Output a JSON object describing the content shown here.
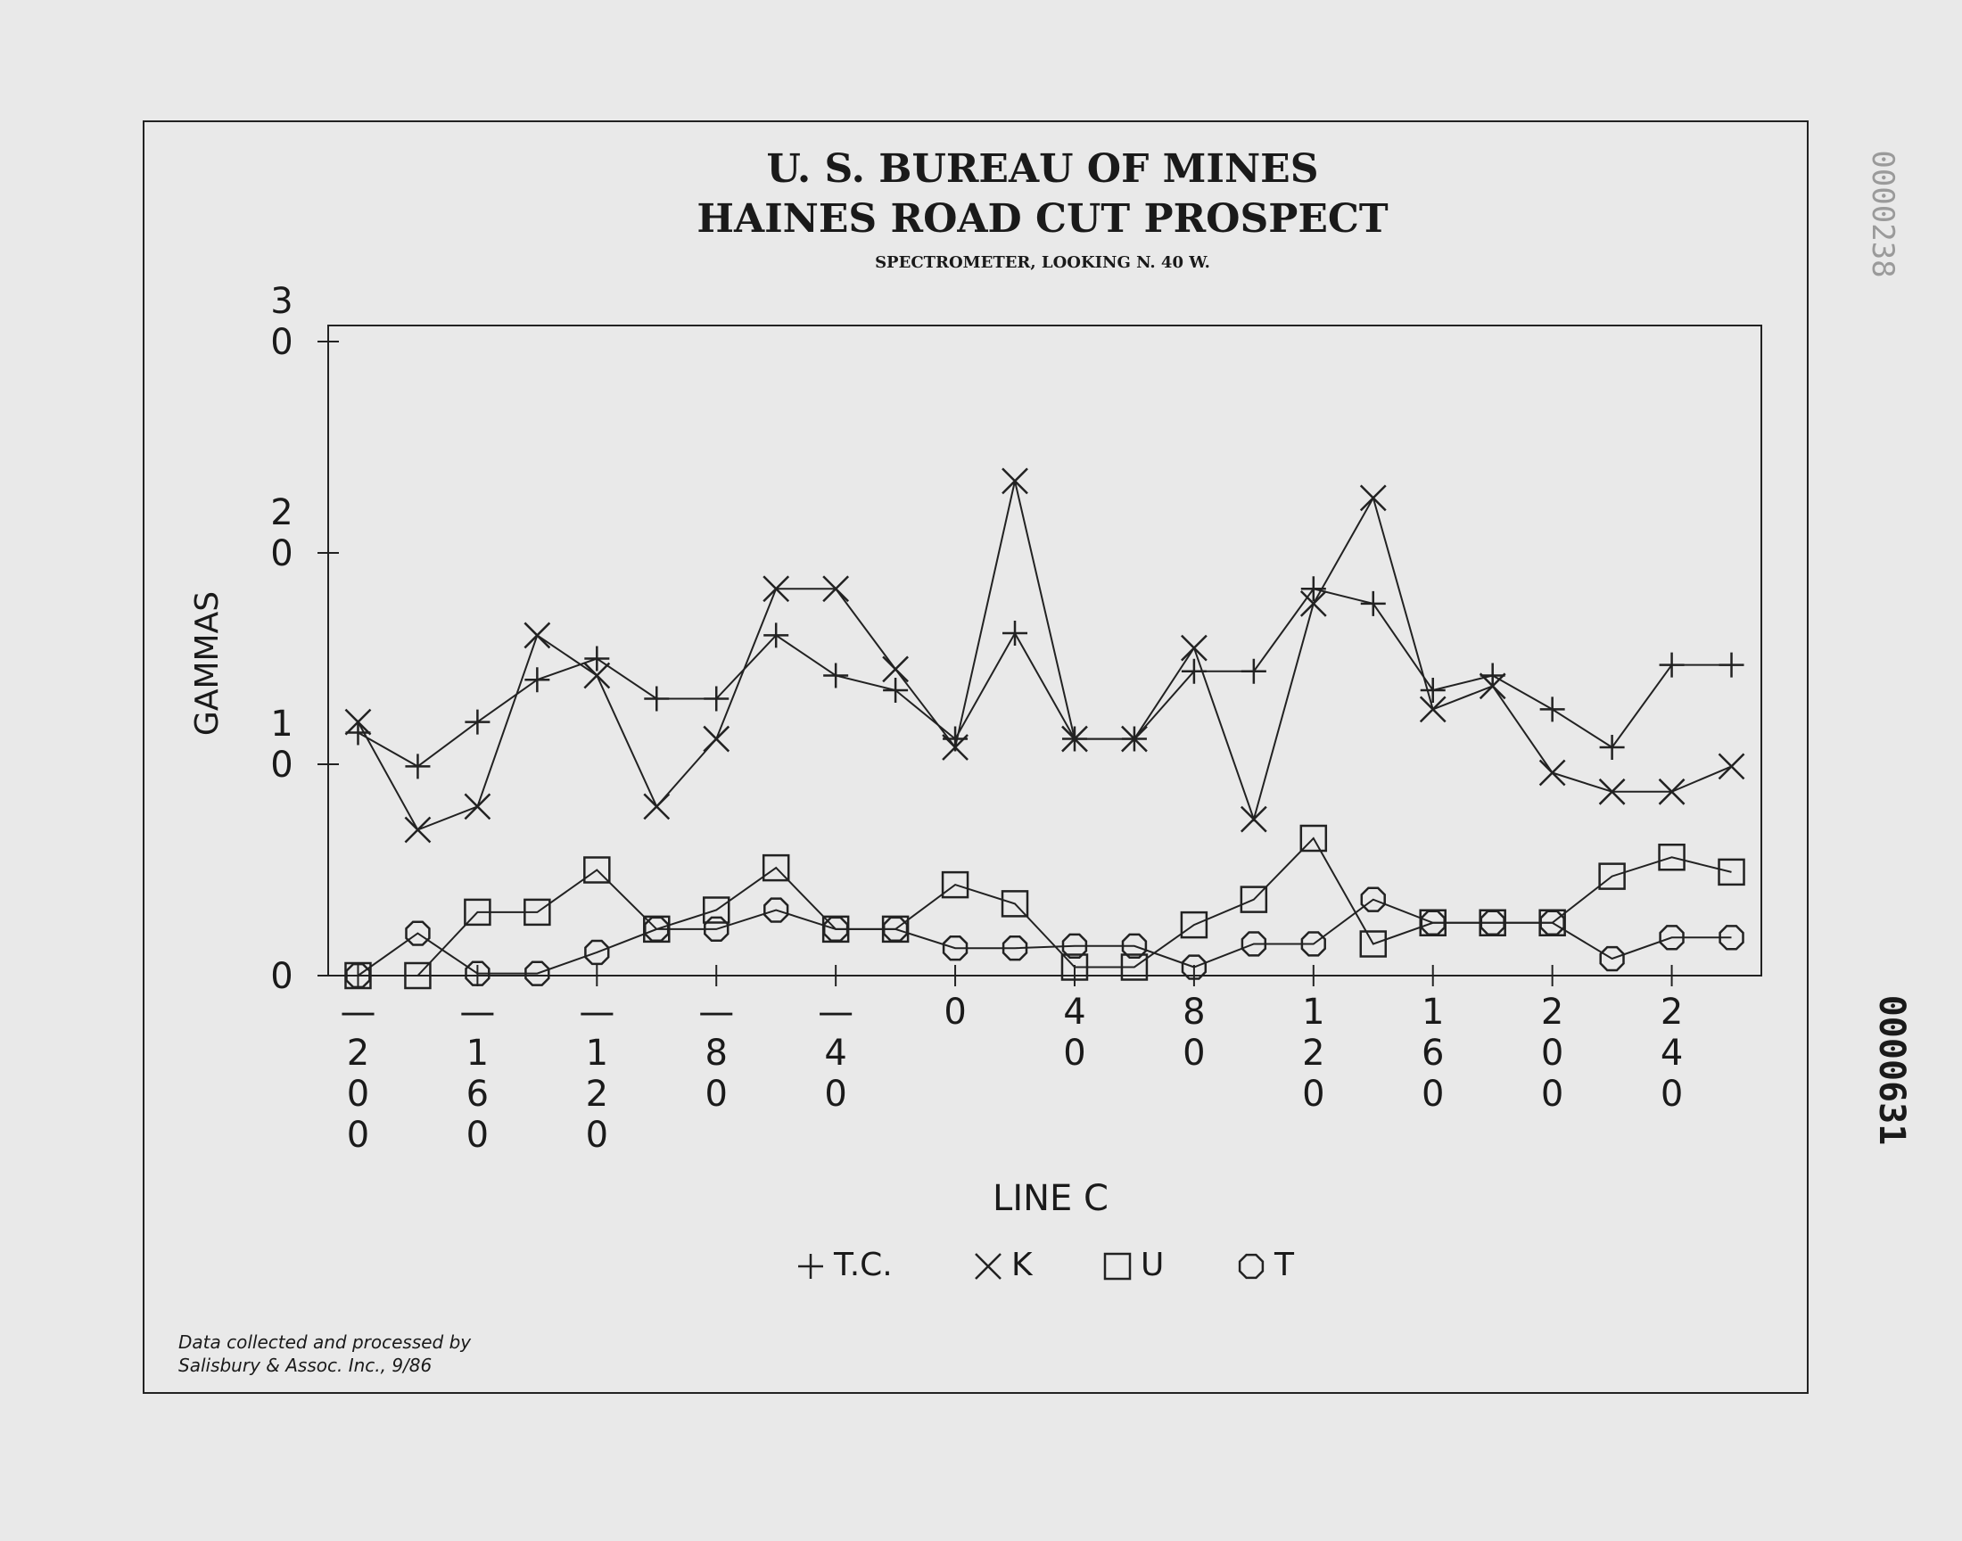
{
  "chart_data": {
    "type": "line",
    "title": "U. S. BUREAU OF MINES",
    "subtitle": "HAINES ROAD CUT PROSPECT",
    "caption": "SPECTROMETER, LOOKING N. 40 W.",
    "x_label": "LINE C",
    "y_label": "GAMMAS",
    "footnote": [
      "Data collected and processed by",
      "Salisbury & Assoc. Inc., 9/86"
    ],
    "annotations": [
      "0000238",
      "0000631"
    ],
    "x": [
      -200,
      -180,
      -160,
      -140,
      -120,
      -100,
      -80,
      -60,
      -40,
      -20,
      0,
      20,
      40,
      60,
      80,
      100,
      120,
      140,
      160,
      180,
      200,
      220,
      240,
      260
    ],
    "xlim": [
      -210,
      270
    ],
    "xticks": [
      -200,
      -160,
      -120,
      -80,
      -40,
      0,
      40,
      80,
      120,
      160,
      200,
      240
    ],
    "ylim": [
      0,
      30
    ],
    "yticks": [
      0,
      10,
      20,
      30
    ],
    "series": [
      {
        "name": "T.C.",
        "marker": "plus",
        "color": "#222222",
        "values": [
          11.5,
          9.9,
          12.0,
          14.0,
          15.0,
          13.1,
          13.1,
          16.1,
          14.2,
          13.5,
          11.2,
          16.2,
          11.2,
          11.2,
          14.4,
          14.4,
          18.3,
          17.6,
          13.5,
          14.2,
          12.6,
          10.8,
          14.7,
          14.7
        ]
      },
      {
        "name": "K",
        "marker": "cross",
        "color": "#222222",
        "values": [
          12.0,
          6.9,
          8.0,
          16.1,
          14.2,
          8.0,
          11.2,
          18.3,
          18.3,
          14.5,
          10.8,
          23.4,
          11.2,
          11.2,
          15.5,
          7.4,
          17.6,
          22.6,
          12.6,
          13.7,
          9.6,
          8.7,
          8.7,
          9.9
        ]
      },
      {
        "name": "U",
        "marker": "square",
        "color": "#222222",
        "values": [
          0,
          0,
          3.0,
          3.0,
          5.0,
          2.2,
          3.1,
          5.1,
          2.2,
          2.2,
          4.3,
          3.4,
          0.4,
          0.4,
          2.4,
          3.6,
          6.5,
          1.5,
          2.5,
          2.5,
          2.5,
          4.7,
          5.6,
          4.9
        ]
      },
      {
        "name": "T",
        "marker": "octagon",
        "color": "#222222",
        "values": [
          0,
          2.0,
          0.1,
          0.1,
          1.1,
          2.2,
          2.2,
          3.1,
          2.2,
          2.2,
          1.3,
          1.3,
          1.4,
          1.4,
          0.4,
          1.5,
          1.5,
          3.6,
          2.5,
          2.5,
          2.5,
          0.8,
          1.8,
          1.8
        ]
      }
    ]
  }
}
